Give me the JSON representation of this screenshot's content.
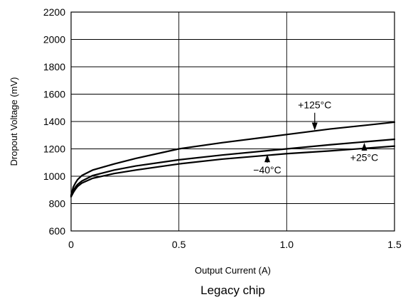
{
  "chart_data": {
    "type": "line",
    "title": "",
    "caption": "Legacy chip",
    "xlabel": "Output Current (A)",
    "ylabel": "Dropout Voltage (mV)",
    "xlim": [
      0,
      1.5
    ],
    "ylim": [
      600,
      2200
    ],
    "x_ticks": [
      0,
      0.5,
      1.0,
      1.5
    ],
    "x_tick_labels": [
      "0",
      "0.5",
      "1.0",
      "1.5"
    ],
    "y_ticks": [
      600,
      800,
      1000,
      1200,
      1400,
      1600,
      1800,
      2000,
      2200
    ],
    "y_tick_labels": [
      "600",
      "800",
      "1000",
      "1200",
      "1400",
      "1600",
      "1800",
      "2000",
      "2200"
    ],
    "grid": true,
    "series": [
      {
        "name": "+125°C",
        "x": [
          0,
          0.01,
          0.02,
          0.03,
          0.05,
          0.1,
          0.2,
          0.3,
          0.5,
          0.7,
          1.0,
          1.2,
          1.5
        ],
        "y": [
          860,
          920,
          950,
          975,
          1005,
          1045,
          1090,
          1130,
          1200,
          1245,
          1305,
          1345,
          1395
        ]
      },
      {
        "name": "+25°C",
        "x": [
          0,
          0.01,
          0.02,
          0.03,
          0.05,
          0.1,
          0.2,
          0.3,
          0.5,
          0.7,
          1.0,
          1.2,
          1.5
        ],
        "y": [
          855,
          895,
          920,
          940,
          965,
          1005,
          1045,
          1075,
          1120,
          1155,
          1200,
          1230,
          1270
        ]
      },
      {
        "name": "−40°C",
        "x": [
          0,
          0.01,
          0.02,
          0.03,
          0.05,
          0.1,
          0.2,
          0.3,
          0.5,
          0.7,
          1.0,
          1.2,
          1.5
        ],
        "y": [
          850,
          880,
          905,
          925,
          950,
          985,
          1020,
          1045,
          1090,
          1125,
          1165,
          1185,
          1220
        ]
      }
    ],
    "annotations": [
      {
        "text": "+125°C",
        "series": "+125°C",
        "arrow_to": [
          1.13,
          1335
        ],
        "label_at": [
          1.13,
          1495
        ]
      },
      {
        "text": "+25°C",
        "series": "+25°C",
        "arrow_to": [
          1.36,
          1245
        ],
        "label_at": [
          1.36,
          1085
        ]
      },
      {
        "text": "−40°C",
        "series": "−40°C",
        "arrow_to": [
          0.91,
          1160
        ],
        "label_at": [
          0.91,
          995
        ]
      }
    ]
  }
}
